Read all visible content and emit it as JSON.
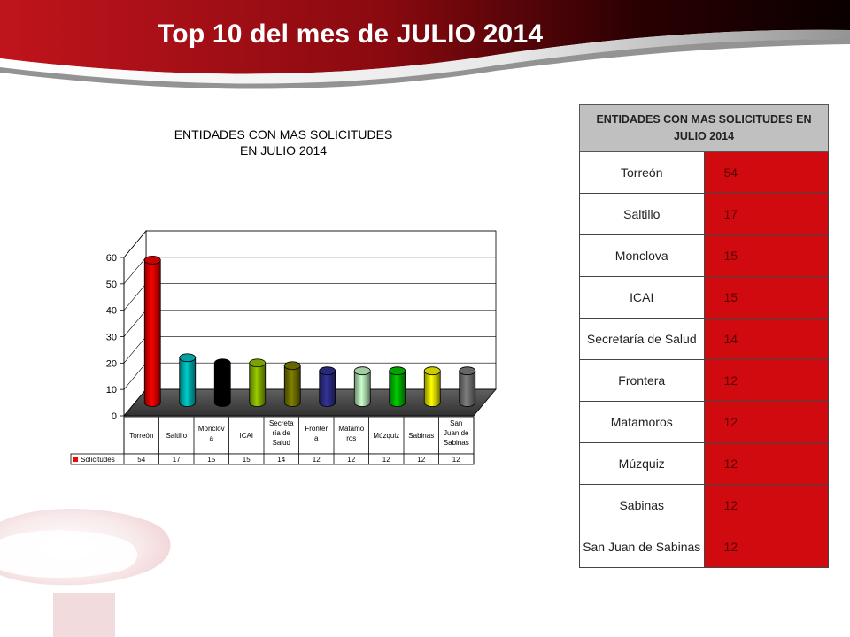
{
  "slide": {
    "title": "Top 10 del mes de JULIO 2014"
  },
  "colors": {
    "header_red": "#c0141c",
    "header_dark": "#1a0000",
    "table_value_bg": "#d10a10",
    "table_header_bg": "#c0c0c0"
  },
  "chart_data": {
    "type": "bar",
    "title": "ENTIDADES CON MAS SOLICITUDES",
    "title_line2": "EN JULIO  2014",
    "categories": [
      "Torreón",
      "Saltillo",
      "Monclova",
      "ICAI",
      "Secretaría de Salud",
      "Frontera",
      "Matamoros",
      "Múzquiz",
      "Sabinas",
      "San Juan de Sabinas"
    ],
    "category_display": [
      [
        "Torreón"
      ],
      [
        "Saltillo"
      ],
      [
        "Monclov",
        "a"
      ],
      [
        "ICAI"
      ],
      [
        "Secreta",
        "ría de",
        "Salud"
      ],
      [
        "Fronter",
        "a"
      ],
      [
        "Matamo",
        "ros"
      ],
      [
        "Múzquiz"
      ],
      [
        "Sabinas"
      ],
      [
        "San",
        "Juan de",
        "Sabinas"
      ]
    ],
    "series": [
      {
        "name": "Solicitudes",
        "values": [
          54,
          17,
          15,
          15,
          14,
          12,
          12,
          12,
          12,
          12
        ],
        "colors": [
          "#ff0000",
          "#00cccc",
          "#000000",
          "#99cc00",
          "#808000",
          "#333399",
          "#ccffcc",
          "#00cc00",
          "#ffff00",
          "#808080"
        ]
      }
    ],
    "ylim": [
      0,
      60
    ],
    "yticks": [
      0,
      10,
      20,
      30,
      40,
      50,
      60
    ],
    "legend": "data-table-below",
    "grid": true,
    "style": "3d-cylinder"
  },
  "table": {
    "header": "ENTIDADES CON MAS SOLICITUDES EN JULIO 2014",
    "rows": [
      {
        "entity": "Torreón",
        "value": "54"
      },
      {
        "entity": "Saltillo",
        "value": "17"
      },
      {
        "entity": "Monclova",
        "value": "15"
      },
      {
        "entity": "ICAI",
        "value": "15"
      },
      {
        "entity": "Secretaría de Salud",
        "value": "14"
      },
      {
        "entity": "Frontera",
        "value": "12"
      },
      {
        "entity": "Matamoros",
        "value": "12"
      },
      {
        "entity": "Múzquiz",
        "value": "12"
      },
      {
        "entity": "Sabinas",
        "value": "12"
      },
      {
        "entity": "San Juan de Sabinas",
        "value": "12"
      }
    ]
  }
}
